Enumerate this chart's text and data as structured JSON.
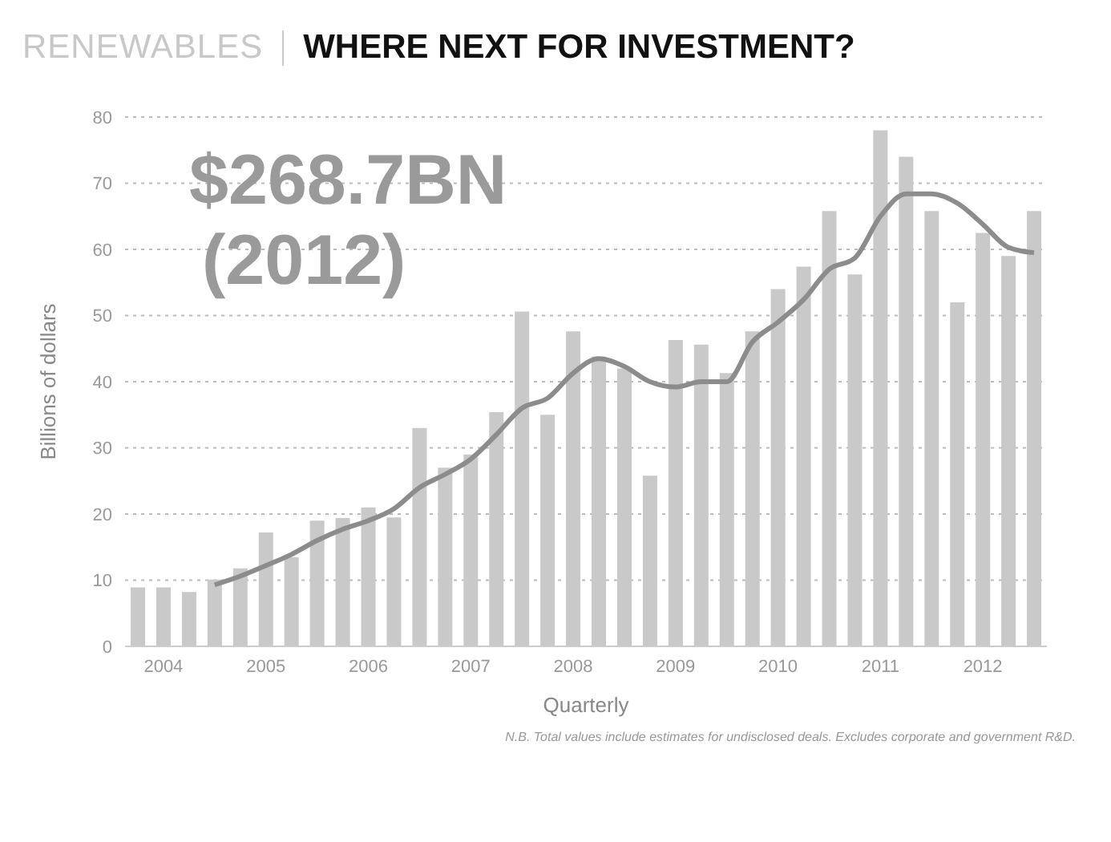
{
  "chart_data": {
    "type": "bar",
    "title": "WHERE NEXT FOR INVESTMENT?",
    "subtitle": "RENEWABLES",
    "xlabel": "Quarterly",
    "ylabel": "Billions of dollars",
    "categories": [
      null,
      "2004",
      null,
      null,
      null,
      "2005",
      null,
      null,
      null,
      "2006",
      null,
      null,
      null,
      "2007",
      null,
      null,
      null,
      "2008",
      null,
      null,
      null,
      "2009",
      null,
      null,
      null,
      "2010",
      null,
      null,
      null,
      "2011",
      null,
      null,
      null,
      "2012",
      null,
      null
    ],
    "series": [
      {
        "color": "#c9c9c9",
        "values": [
          8.9,
          8.9,
          8.2,
          10.1,
          11.8,
          17.2,
          13.5,
          19,
          19.4,
          21,
          19.5,
          33,
          27,
          29,
          35.4,
          50.6,
          35,
          47.6,
          43.8,
          42,
          25.8,
          46.3,
          45.6,
          41.3,
          47.6,
          54,
          57.4,
          65.8,
          56.2,
          78,
          74,
          65.8,
          52,
          62.5,
          59,
          65.8
        ]
      },
      {
        "type": "line",
        "color": "#8c8c8c",
        "values": [
          null,
          null,
          null,
          9.3,
          10.6,
          12.2,
          13.9,
          16,
          17.7,
          19,
          20.8,
          24,
          26,
          28.3,
          32,
          36,
          37.5,
          41.3,
          43.5,
          42.3,
          40,
          39.2,
          40,
          40,
          46,
          49,
          52.4,
          57,
          58.7,
          65,
          68.4,
          68.4,
          67,
          63.8,
          60.3,
          59.5
        ]
      }
    ],
    "ylim": [
      0,
      80
    ],
    "yticks": [
      0,
      10,
      20,
      30,
      40,
      50,
      60,
      70,
      80
    ],
    "grid": "y",
    "legend": false,
    "marker": "none",
    "line_style": "solid",
    "annotations": [
      "$268.7BN",
      "(2012)",
      "N.B. Total values include estimates for undisclosed deals. Excludes corporate and government R&D."
    ]
  }
}
